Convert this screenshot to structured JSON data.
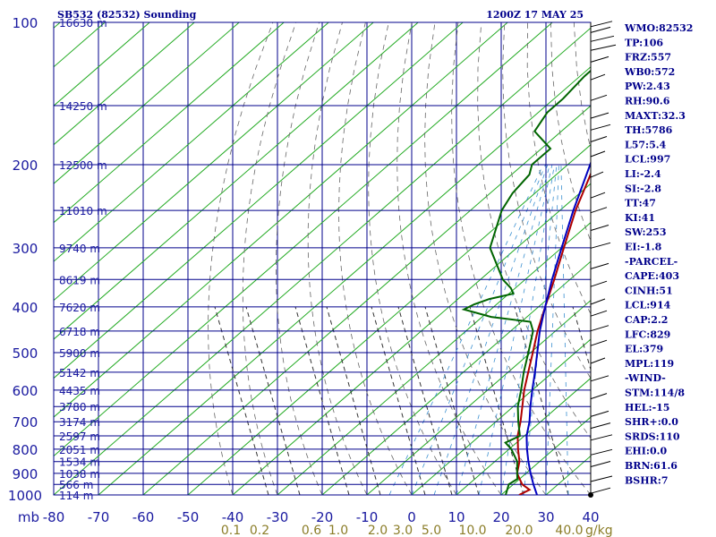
{
  "header": {
    "station": "SB532 (82532) Sounding",
    "time": "1200Z 17 MAY 25"
  },
  "indices": [
    "WMO:82532",
    "TP:106",
    "FRZ:557",
    "WB0:572",
    "PW:2.43",
    "RH:90.6",
    "MAXT:32.3",
    "TH:5786",
    "L57:5.4",
    "LCL:997",
    "LI:-2.4",
    "SI:-2.8",
    "TT:47",
    "KI:41",
    "SW:253",
    "EI:-1.8",
    "-PARCEL-",
    "CAPE:403",
    "CINH:51",
    "LCL:914",
    "CAP:2.2",
    "LFC:829",
    "EL:379",
    "MPL:119",
    "-WIND-",
    "STM:114/8",
    "HEL:-15",
    "SHR+:0.0",
    "SRDS:110",
    "EHI:0.0",
    "BRN:61.6",
    "BSHR:7"
  ],
  "chart_data": {
    "type": "line",
    "subtype": "skew-T log-P sounding",
    "pressure_axis": {
      "unit_label": "mb",
      "scale": "log",
      "range": [
        1000,
        100
      ],
      "ticks": [
        100,
        200,
        300,
        400,
        500,
        600,
        700,
        800,
        900,
        1000
      ]
    },
    "temperature_axis": {
      "range": [
        -80,
        40
      ],
      "ticks": [
        -80,
        -70,
        -60,
        -50,
        -40,
        -30,
        -20,
        -10,
        0,
        10,
        20,
        30,
        40
      ]
    },
    "mixing_ratio_axis": {
      "unit_label": "g/kg",
      "ticks": [
        "0.1",
        "0.2",
        "0.6",
        "1.0",
        "2.0",
        "3.0",
        "5.0",
        "10.0",
        "20.0",
        "40.0"
      ]
    },
    "height_labels": [
      {
        "p": 100,
        "label": "16630 m"
      },
      {
        "p": 150,
        "label": "14250 m"
      },
      {
        "p": 200,
        "label": "12500 m"
      },
      {
        "p": 250,
        "label": "11010 m"
      },
      {
        "p": 300,
        "label": "9740 m"
      },
      {
        "p": 350,
        "label": "8619 m"
      },
      {
        "p": 400,
        "label": "7620 m"
      },
      {
        "p": 450,
        "label": "6718 m"
      },
      {
        "p": 500,
        "label": "5900 m"
      },
      {
        "p": 550,
        "label": "5142 m"
      },
      {
        "p": 600,
        "label": "4435 m"
      },
      {
        "p": 650,
        "label": "3780 m"
      },
      {
        "p": 700,
        "label": "3174 m"
      },
      {
        "p": 750,
        "label": "2597 m"
      },
      {
        "p": 800,
        "label": "2051 m"
      },
      {
        "p": 850,
        "label": "1534 m"
      },
      {
        "p": 900,
        "label": "1038 m"
      },
      {
        "p": 950,
        "label": "566 m"
      },
      {
        "p": 1000,
        "label": "114 m"
      }
    ],
    "series": [
      {
        "color": "#b00000",
        "points": [
          [
            1000,
            24
          ],
          [
            975,
            25
          ],
          [
            950,
            22
          ],
          [
            925,
            20
          ],
          [
            900,
            18
          ],
          [
            850,
            15.5
          ],
          [
            800,
            12
          ],
          [
            750,
            8.5
          ],
          [
            700,
            5.5
          ],
          [
            650,
            2
          ],
          [
            600,
            -1.8
          ],
          [
            550,
            -5.5
          ],
          [
            500,
            -9.5
          ],
          [
            450,
            -14
          ],
          [
            400,
            -18.5
          ],
          [
            350,
            -23.5
          ],
          [
            300,
            -29.5
          ],
          [
            250,
            -36.5
          ],
          [
            200,
            -44
          ],
          [
            150,
            -52
          ],
          [
            120,
            -58
          ],
          [
            100,
            -65
          ]
        ]
      },
      {
        "color": "#006400",
        "points": [
          [
            1000,
            21
          ],
          [
            975,
            20
          ],
          [
            950,
            19
          ],
          [
            925,
            19.5
          ],
          [
            900,
            18
          ],
          [
            850,
            15
          ],
          [
            800,
            10.5
          ],
          [
            775,
            7.5
          ],
          [
            750,
            9
          ],
          [
            700,
            5
          ],
          [
            650,
            1
          ],
          [
            600,
            -2.5
          ],
          [
            550,
            -6.5
          ],
          [
            500,
            -10.5
          ],
          [
            450,
            -15
          ],
          [
            430,
            -18
          ],
          [
            420,
            -28
          ],
          [
            405,
            -36
          ],
          [
            395,
            -35
          ],
          [
            385,
            -33
          ],
          [
            375,
            -29
          ],
          [
            365,
            -31
          ],
          [
            350,
            -35
          ],
          [
            300,
            -46
          ],
          [
            250,
            -53
          ],
          [
            230,
            -55
          ],
          [
            210,
            -56
          ],
          [
            200,
            -58
          ],
          [
            185,
            -58
          ],
          [
            170,
            -66
          ],
          [
            155,
            -68
          ],
          [
            145,
            -68
          ],
          [
            130,
            -69
          ],
          [
            120,
            -69
          ],
          [
            110,
            -72
          ],
          [
            100,
            -75
          ]
        ]
      },
      {
        "color": "#0000c0",
        "points": [
          [
            1000,
            28
          ],
          [
            950,
            24.5
          ],
          [
            900,
            21
          ],
          [
            850,
            17.5
          ],
          [
            800,
            14
          ],
          [
            750,
            10.5
          ],
          [
            700,
            7.5
          ],
          [
            650,
            3.8
          ],
          [
            600,
            0
          ],
          [
            550,
            -4
          ],
          [
            500,
            -8.5
          ],
          [
            450,
            -13.5
          ],
          [
            400,
            -18.5
          ],
          [
            350,
            -24
          ],
          [
            300,
            -30
          ],
          [
            250,
            -37
          ],
          [
            200,
            -45
          ],
          [
            150,
            -55
          ],
          [
            120,
            -62
          ],
          [
            100,
            -68
          ]
        ]
      }
    ]
  }
}
